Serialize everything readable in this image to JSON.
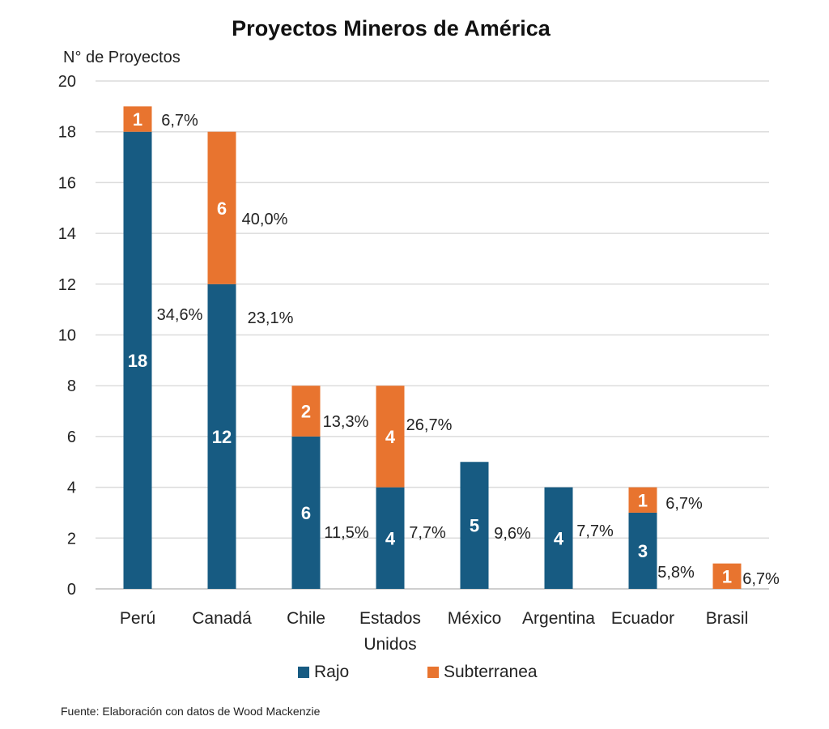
{
  "chart_data": {
    "type": "bar",
    "stacked": true,
    "title": "Proyectos Mineros de América",
    "ylabel": "N° de Proyectos",
    "xlabel": "",
    "ylim": [
      0,
      20
    ],
    "yticks": [
      0,
      2,
      4,
      6,
      8,
      10,
      12,
      14,
      16,
      18,
      20
    ],
    "grid": true,
    "legend_position": "bottom",
    "categories": [
      [
        "Perú"
      ],
      [
        "Canadá"
      ],
      [
        "Chile"
      ],
      [
        "Estados",
        "Unidos"
      ],
      [
        "México"
      ],
      [
        "Argentina"
      ],
      [
        "Ecuador"
      ],
      [
        "Brasil"
      ]
    ],
    "series": [
      {
        "name": "Rajo",
        "color": "#175b82",
        "values": [
          18,
          12,
          6,
          4,
          5,
          4,
          3,
          0
        ],
        "percent_labels": [
          "34,6%",
          "23,1%",
          "11,5%",
          "7,7%",
          "9,6%",
          "7,7%",
          "5,8%",
          null
        ]
      },
      {
        "name": "Subterranea",
        "color": "#e8742f",
        "values": [
          1,
          6,
          2,
          4,
          0,
          0,
          1,
          1
        ],
        "percent_labels": [
          "6,7%",
          "40,0%",
          "13,3%",
          "26,7%",
          null,
          null,
          "6,7%",
          "6,7%"
        ]
      }
    ],
    "source": "Fuente: Elaboración con datos de Wood Mackenzie"
  }
}
